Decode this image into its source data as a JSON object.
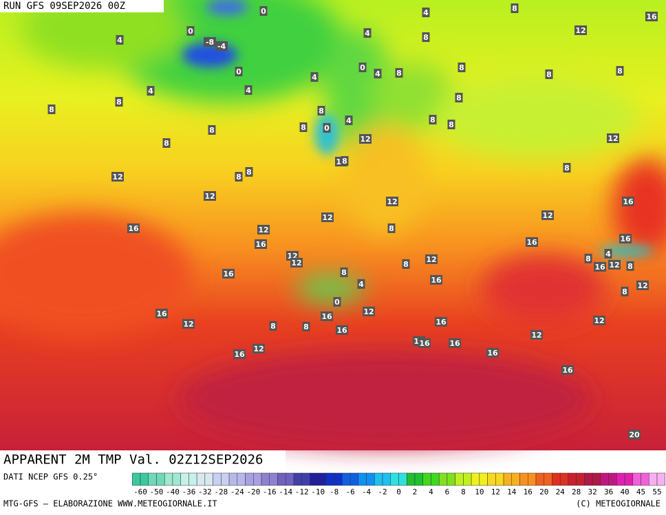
{
  "header": {
    "run": "RUN GFS 09SEP2026 00Z"
  },
  "map": {
    "contour_labels": [
      0,
      4,
      8,
      16,
      4,
      0,
      12,
      8,
      4,
      0,
      0,
      4,
      8,
      8,
      8,
      8,
      4,
      4,
      4,
      8,
      8,
      8,
      8,
      8,
      8,
      4,
      0,
      8,
      8,
      8,
      12,
      12,
      12,
      8,
      8,
      8,
      12,
      8,
      12,
      12,
      16,
      12,
      12,
      16,
      12,
      8,
      16,
      16,
      16,
      12,
      12,
      4,
      8,
      16,
      12,
      8,
      8,
      12,
      16,
      8,
      16,
      4,
      8,
      12,
      0,
      16,
      12,
      16,
      12,
      16,
      12,
      8,
      8,
      16,
      12,
      16,
      16,
      16,
      12,
      16,
      16,
      16,
      20,
      -4,
      -8
    ]
  },
  "title": "APPARENT 2M TMP Val. 02Z12SEP2026",
  "source": "DATI NCEP GFS 0.25°",
  "credit_left": "MTG-GFS — ELABORAZIONE WWW.METEOGIORNALE.IT",
  "credit_right": "(C) METEOGIORNALE",
  "legend": {
    "labels": [
      -60,
      -50,
      -40,
      -36,
      -32,
      -28,
      -24,
      -20,
      -16,
      -14,
      -12,
      -10,
      -8,
      -6,
      -4,
      -2,
      0,
      2,
      4,
      6,
      8,
      10,
      12,
      14,
      16,
      20,
      24,
      28,
      32,
      36,
      40,
      45,
      55
    ],
    "colors": [
      "#3cc8a0",
      "#70d8b8",
      "#a0e8d0",
      "#c8f0e8",
      "#d8e8f0",
      "#c8d0f0",
      "#b8b8e8",
      "#a8a0e0",
      "#9080d0",
      "#7060c0",
      "#4040a8",
      "#2020a0",
      "#1030c8",
      "#1060e0",
      "#1090f0",
      "#20c0f0",
      "#30e0e0",
      "#20c030",
      "#40d820",
      "#80e020",
      "#c0f020",
      "#f0f020",
      "#f8d820",
      "#f8b020",
      "#f89020",
      "#f06020",
      "#e03020",
      "#c82030",
      "#b01848",
      "#c01880",
      "#e020b0",
      "#f060d8",
      "#f8b0f0"
    ]
  }
}
